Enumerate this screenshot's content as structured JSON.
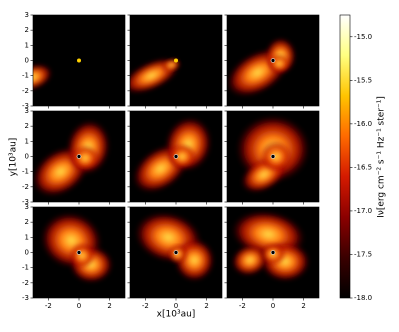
{
  "chart_data": {
    "type": "image-grid",
    "xlabel": "x[10³au]",
    "ylabel": "y[10³au]",
    "xlim": [
      -3,
      3
    ],
    "xticks": [
      -2,
      0,
      2
    ],
    "ylim": [
      -3,
      3
    ],
    "yticks": [
      -3,
      -2,
      -1,
      0,
      1,
      2,
      3
    ],
    "colorbar": {
      "label": "Iν[erg cm⁻² s⁻¹ Hz⁻¹ ster⁻¹]",
      "lim": [
        -18.0,
        -14.75
      ],
      "ticks": [
        {
          "value": -15.0,
          "label": "-15.0"
        },
        {
          "value": -15.5,
          "label": "-15.5"
        },
        {
          "value": -16.0,
          "label": "-16.0"
        },
        {
          "value": -16.5,
          "label": "-16.5"
        },
        {
          "value": -17.0,
          "label": "-17.0"
        },
        {
          "value": -17.5,
          "label": "-17.5"
        },
        {
          "value": -18.0,
          "label": "-18.0"
        }
      ],
      "colors": [
        "#000000",
        "#3a0000",
        "#8b0000",
        "#d41a00",
        "#ff6a00",
        "#ffc400",
        "#ffff80",
        "#ffffff"
      ]
    }
  }
}
